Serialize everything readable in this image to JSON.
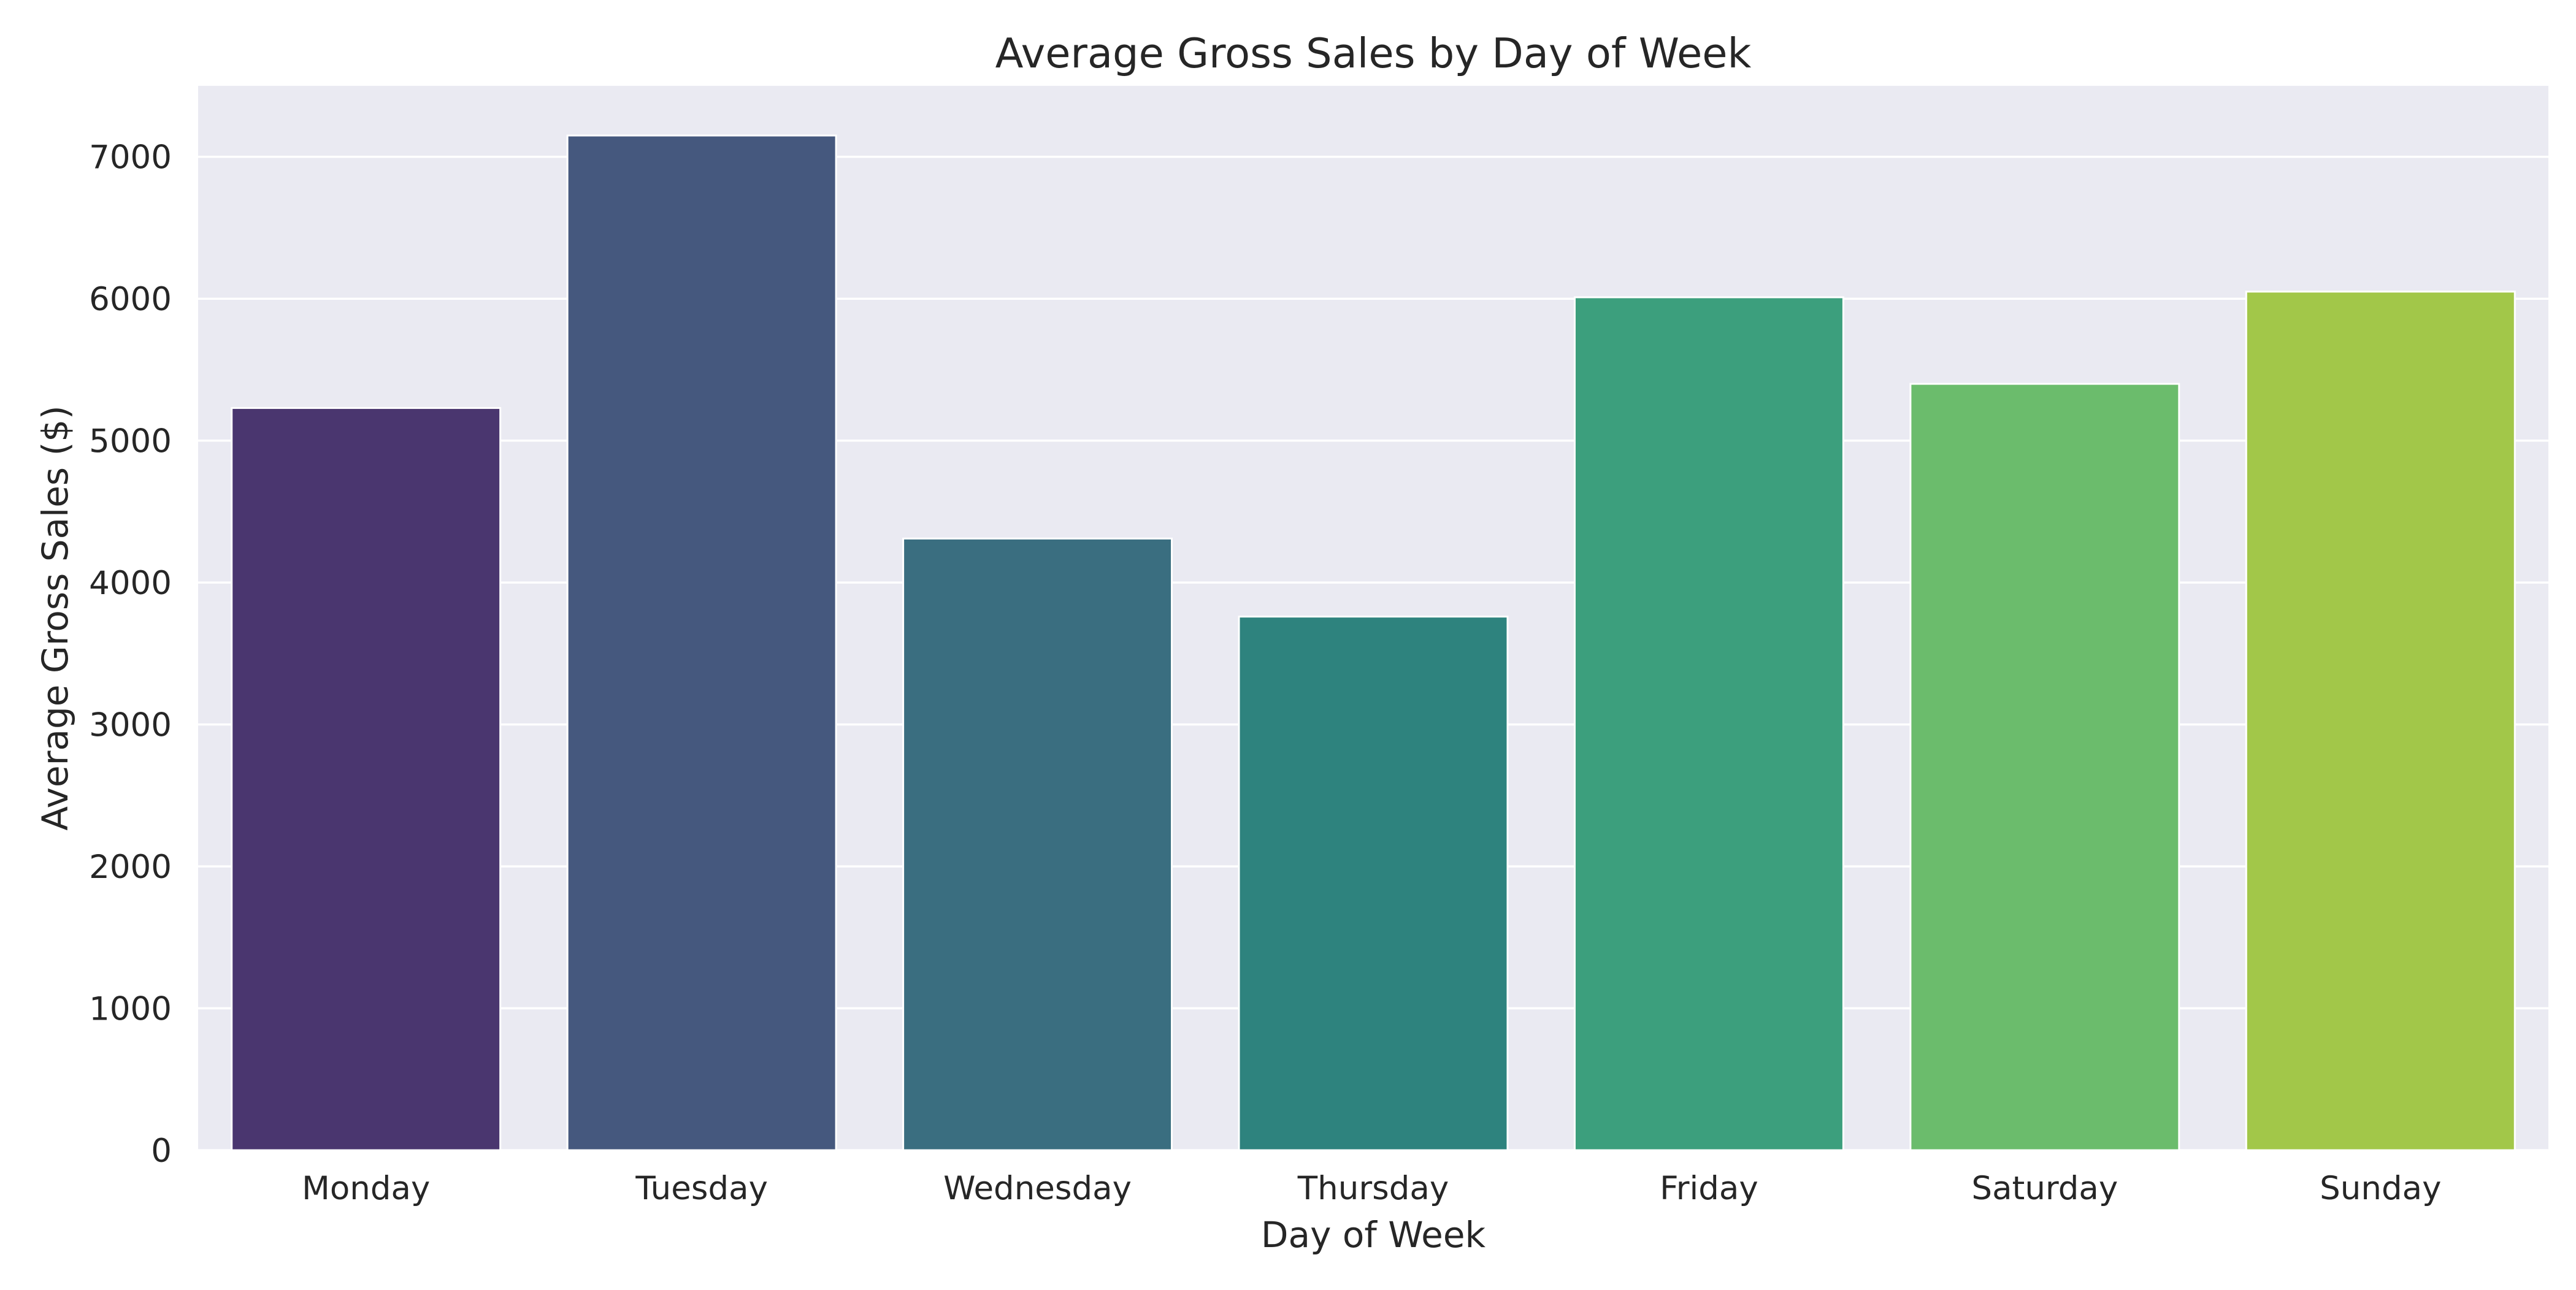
{
  "chart_data": {
    "type": "bar",
    "title": "Average Gross Sales by Day of Week",
    "xlabel": "Day of Week",
    "ylabel": "Average Gross Sales ($)",
    "categories": [
      "Monday",
      "Tuesday",
      "Wednesday",
      "Thursday",
      "Friday",
      "Saturday",
      "Sunday"
    ],
    "values": [
      5230,
      7150,
      4310,
      3760,
      6010,
      5400,
      6050
    ],
    "ylim": [
      0,
      7500
    ],
    "yticks": [
      0,
      1000,
      2000,
      3000,
      4000,
      5000,
      6000,
      7000
    ],
    "grid": true,
    "legend": "none",
    "colors": [
      "#4a366f",
      "#45587e",
      "#3a6e80",
      "#2e837e",
      "#3c9f7d",
      "#6bbc6c",
      "#a2c749"
    ],
    "background": "#eaeaf2",
    "gridline_color": "#ffffff"
  }
}
